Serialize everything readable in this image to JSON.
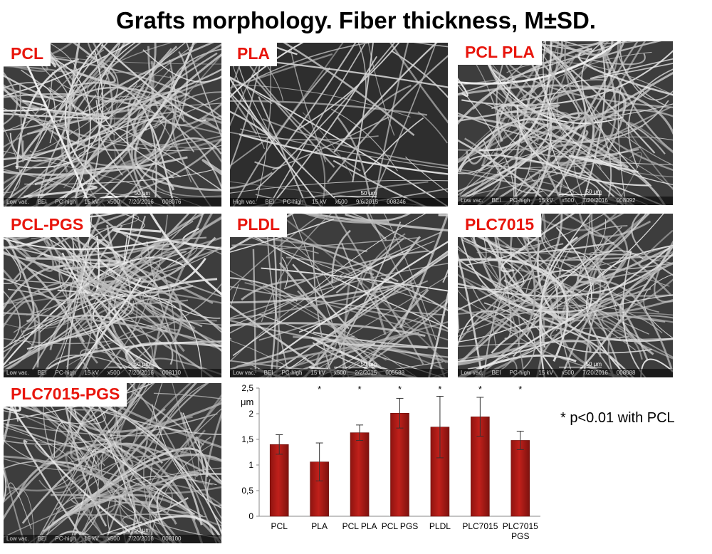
{
  "title": "Grafts morphology. Fiber thickness, M±SD.",
  "panels": [
    {
      "label": "PCL",
      "info": [
        "Low vac.",
        "BEI",
        "PC-high",
        "15 kV",
        "x500",
        "7/20/2016",
        "008076"
      ],
      "scale": "50 μm"
    },
    {
      "label": "PLA",
      "info": [
        "High vac.",
        "BEI",
        "PC-high",
        "15 kV",
        "x500",
        "9/6/2015",
        "008246"
      ],
      "scale": "50 μm"
    },
    {
      "label": "PCL PLA",
      "info": [
        "Low vac.",
        "BEI",
        "PC-high",
        "15 kV",
        "x500",
        "7/20/2016",
        "008092"
      ],
      "scale": "50 μm"
    },
    {
      "label": "PCL-PGS",
      "info": [
        "Low vac.",
        "BEI",
        "PC-high",
        "15 kV",
        "x500",
        "7/20/2016",
        "008110"
      ],
      "scale": "50 μm"
    },
    {
      "label": "PLDL",
      "info": [
        "Low vac.",
        "BEI",
        "PC-high",
        "15 kV",
        "x500",
        "2/2/2015",
        "005588"
      ],
      "scale": "50 μm"
    },
    {
      "label": "PLC7015",
      "info": [
        "Low vac.",
        "BEI",
        "PC-high",
        "15 kV",
        "x500",
        "7/20/2016",
        "008088"
      ],
      "scale": "50 μm"
    },
    {
      "label": "PLC7015-PGS",
      "info": [
        "Low vac.",
        "BEI",
        "PC-high",
        "15 kV",
        "x500",
        "7/20/2016",
        "008100"
      ],
      "scale": "50 μm"
    }
  ],
  "chart_data": {
    "type": "bar",
    "categories": [
      "PCL",
      "PLA",
      "PCL PLA",
      "PCL PGS",
      "PLDL",
      "PLC7015",
      "PLC7015 PGS"
    ],
    "values": [
      1.4,
      1.06,
      1.63,
      2.01,
      1.74,
      1.94,
      1.48
    ],
    "errors": [
      0.19,
      0.37,
      0.15,
      0.29,
      0.6,
      0.38,
      0.18
    ],
    "significance": [
      "",
      "*",
      "*",
      "*",
      "*",
      "*",
      "*"
    ],
    "ylabel": "μm",
    "ylim": [
      0,
      2.5
    ],
    "yticks": [
      "0",
      "0,5",
      "1",
      "1,5",
      "2",
      "2,5"
    ],
    "bar_color": "#c0201b",
    "grid": false
  },
  "note": "* p<0.01 with PCL"
}
